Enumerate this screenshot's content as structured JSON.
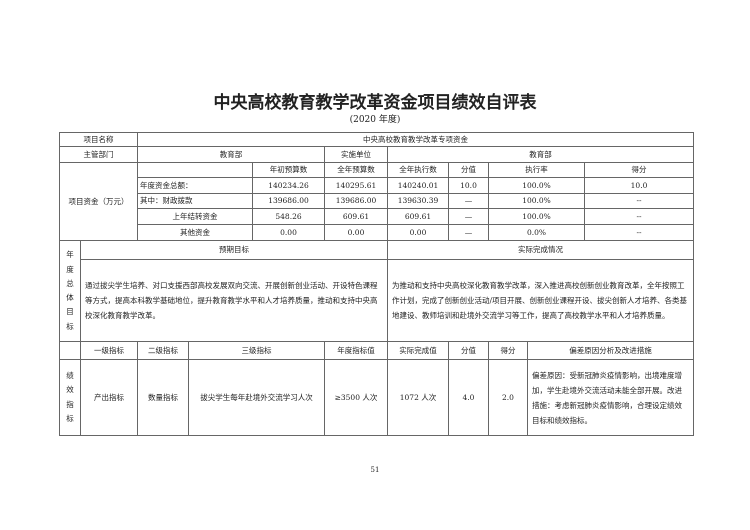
{
  "title": "中央高校教育教学改革资金项目绩效自评表",
  "subtitle": "(2020 年度)",
  "project": {
    "name_label": "项目名称",
    "name_value": "中央高校教育教学改革专项资金",
    "dept_label": "主管部门",
    "dept_value": "教育部",
    "impl_label": "实施单位",
    "impl_value": "教育部"
  },
  "funds": {
    "label": "项目资金（万元）",
    "headers": [
      "年初预算数",
      "全年预算数",
      "全年执行数",
      "分值",
      "执行率",
      "得分"
    ],
    "rows": [
      {
        "name": "年度资金总额：",
        "cells": [
          "140234.26",
          "140295.61",
          "140240.01",
          "10.0",
          "100.0%",
          "10.0"
        ]
      },
      {
        "name": "其中：财政拨款",
        "cells": [
          "139686.00",
          "139686.00",
          "139630.39",
          "—",
          "100.0%",
          "--"
        ]
      },
      {
        "name": "上年结转资金",
        "cells": [
          "548.26",
          "609.61",
          "609.61",
          "—",
          "100.0%",
          "--"
        ]
      },
      {
        "name": "其他资金",
        "cells": [
          "0.00",
          "0.00",
          "0.00",
          "—",
          "0.0%",
          "--"
        ]
      }
    ]
  },
  "goals": {
    "label_chars": [
      "年",
      "度",
      "总",
      "体",
      "目",
      "标"
    ],
    "expected_label": "预期目标",
    "actual_label": "实际完成情况",
    "expected_text": "通过拔尖学生培养、对口支援西部高校发展双向交流、开展创新创业活动、开设特色课程等方式，提高本科教学基础地位，提升教育教学水平和人才培养质量，推动和支持中央高校深化教育教学改革。",
    "actual_text": "为推动和支持中央高校深化教育教学改革，深入推进高校创新创业教育改革，全年按照工作计划，完成了创新创业活动/项目开展、创新创业课程开设、拔尖创新人才培养、各类基地建设、教师培训和赴境外交流学习等工作，提高了高校教学水平和人才培养质量。"
  },
  "indicators": {
    "label_chars": [
      "绩",
      "效",
      "指",
      "标"
    ],
    "headers": [
      "一级指标",
      "二级指标",
      "三级指标",
      "年度指标值",
      "实际完成值",
      "分值",
      "得分",
      "偏差原因分析及改进措施"
    ],
    "rows": [
      {
        "cells": [
          "产出指标",
          "数量指标",
          "拔尖学生每年赴境外交流学习人次",
          "≥3500 人次",
          "1072 人次",
          "4.0",
          "2.0"
        ],
        "note": "偏差原因：受新冠肺炎疫情影响，出境难度增加，学生赴境外交流活动未能全部开展。改进措施：考虑新冠肺炎疫情影响，合理设定绩效目标和绩效指标。"
      }
    ]
  },
  "page_number": "51"
}
